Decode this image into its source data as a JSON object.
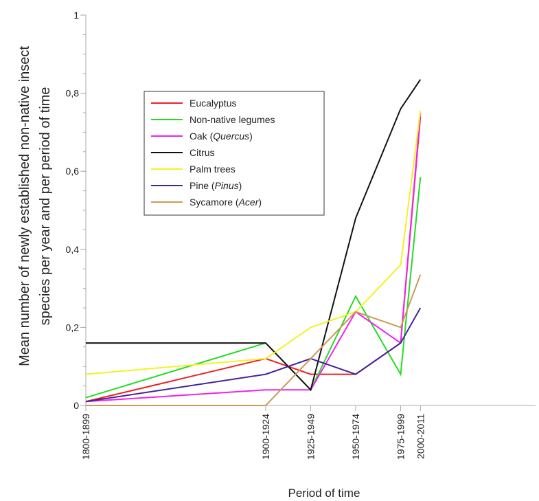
{
  "chart_data": {
    "type": "line",
    "xlabel": "Period of time",
    "ylabel_line1": "Mean number of newly established  non-native insect",
    "ylabel_line2": "species per year and per period of time",
    "ylim": [
      0,
      1
    ],
    "y_major_ticks": [
      0,
      0.2,
      0.4,
      0.6,
      0.8,
      1
    ],
    "y_tick_labels": [
      "0",
      "0,2",
      "0,4",
      "0,6",
      "0,8",
      "1"
    ],
    "y_minor_step": 0.05,
    "x_range": [
      1800,
      2050
    ],
    "x_ticks": [
      1800,
      1900,
      1925,
      1950,
      1975,
      1986
    ],
    "x_tick_labels": [
      "1800-1899",
      "1900-1924",
      "1925-1949",
      "1950-1974",
      "1975-1999",
      "2000-2011"
    ],
    "grid": false,
    "legend_position": "upper-left",
    "series": [
      {
        "name": "Eucalyptus",
        "color": "#ee2222",
        "values": [
          0.01,
          0.12,
          0.08,
          0.08,
          0.16,
          0.74
        ]
      },
      {
        "name": "Non-native legumes",
        "color": "#22dd22",
        "values": [
          0.02,
          0.16,
          0.04,
          0.28,
          0.08,
          0.585
        ]
      },
      {
        "name": "Oak (",
        "name_italic": "Quercus",
        "name_suffix": ")",
        "color": "#ee22ee",
        "values": [
          0.01,
          0.04,
          0.04,
          0.24,
          0.16,
          0.75
        ]
      },
      {
        "name": "Citrus",
        "color": "#111111",
        "values": [
          0.16,
          0.16,
          0.04,
          0.48,
          0.76,
          0.835
        ]
      },
      {
        "name": "Palm trees",
        "color": "#f2f222",
        "values": [
          0.08,
          0.12,
          0.2,
          0.24,
          0.36,
          0.755
        ]
      },
      {
        "name": "Pine (",
        "name_italic": "Pinus",
        "name_suffix": ")",
        "color": "#442299",
        "values": [
          0.01,
          0.08,
          0.12,
          0.08,
          0.16,
          0.25
        ]
      },
      {
        "name": "Sycamore (",
        "name_italic": "Acer",
        "name_suffix": ")",
        "color": "#cc9955",
        "values": [
          0,
          0,
          0.12,
          0.24,
          0.2,
          0.335
        ]
      }
    ]
  }
}
